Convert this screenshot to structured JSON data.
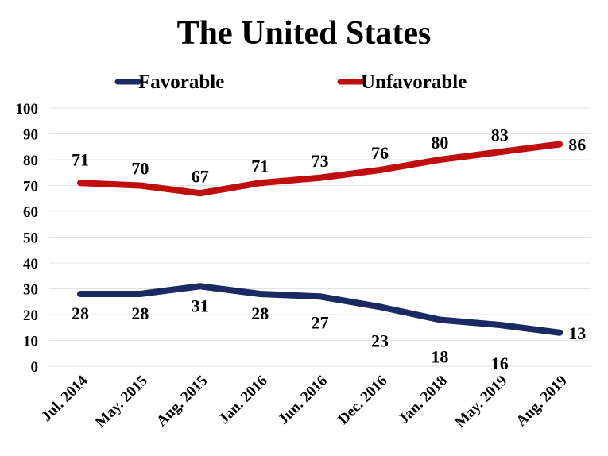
{
  "chart_data": {
    "type": "line",
    "title": "The United States",
    "categories": [
      "Jul. 2014",
      "May. 2015",
      "Aug. 2015",
      "Jan. 2016",
      "Jun. 2016",
      "Dec. 2016",
      "Jan. 2018",
      "May. 2019",
      "Aug. 2019"
    ],
    "series": [
      {
        "name": "Favorable",
        "color": "#1b2a63",
        "values": [
          28,
          28,
          31,
          28,
          27,
          23,
          18,
          16,
          13
        ],
        "label_position": "below"
      },
      {
        "name": "Unfavorable",
        "color": "#c00d0d",
        "values": [
          71,
          70,
          67,
          71,
          73,
          76,
          80,
          83,
          86
        ],
        "label_position": "above"
      }
    ],
    "ylim": [
      0,
      100
    ],
    "yticks": [
      0,
      10,
      20,
      30,
      40,
      50,
      60,
      70,
      80,
      90,
      100
    ],
    "grid": true,
    "legend": "top-center",
    "xlabel": "",
    "ylabel": ""
  }
}
